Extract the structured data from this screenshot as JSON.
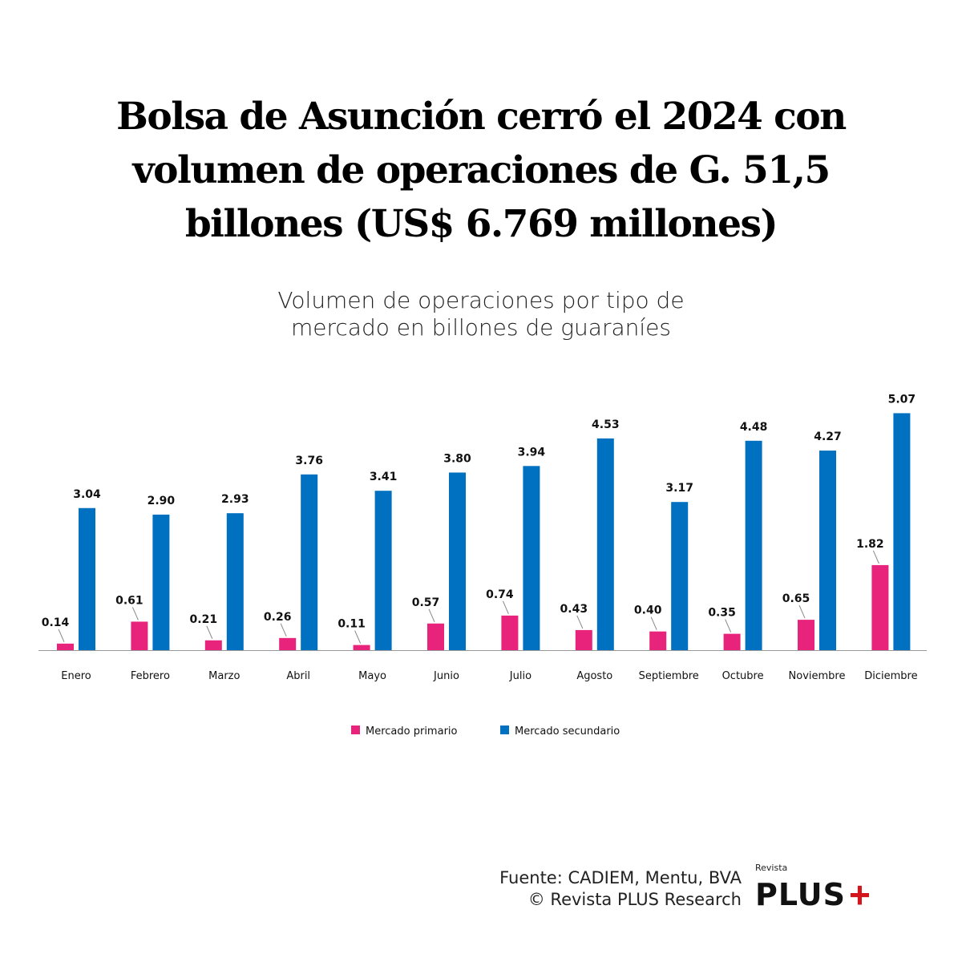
{
  "title_lines": [
    "Bolsa de Asunción cerró el 2024 con",
    "volumen de operaciones de G. 51,5",
    "billones (US$ 6.769 millones)"
  ],
  "subtitle_lines": [
    "Volumen de operaciones por tipo de",
    "mercado en billones de guaraníes"
  ],
  "chart_data": {
    "type": "bar",
    "title": "Volumen de operaciones por tipo de mercado en billones de guaraníes",
    "xlabel": "",
    "ylabel": "",
    "ylim": [
      0,
      5.2
    ],
    "grid": false,
    "legend_position": "bottom",
    "categories": [
      "Enero",
      "Febrero",
      "Marzo",
      "Abril",
      "Mayo",
      "Junio",
      "Julio",
      "Agosto",
      "Septiembre",
      "Octubre",
      "Noviembre",
      "Diciembre"
    ],
    "series": [
      {
        "name": "Mercado primario",
        "color": "#e8237c",
        "values": [
          0.14,
          0.61,
          0.21,
          0.26,
          0.11,
          0.57,
          0.74,
          0.43,
          0.4,
          0.35,
          0.65,
          1.82
        ],
        "labels": [
          "0.14",
          "0.61",
          "0.21",
          "0.26",
          "0.11",
          "0.57",
          "0.74",
          "0.43",
          "0.40",
          "0.35",
          "0.65",
          "1.82"
        ]
      },
      {
        "name": "Mercado secundario",
        "color": "#0070c0",
        "values": [
          3.04,
          2.9,
          2.93,
          3.76,
          3.41,
          3.8,
          3.94,
          4.53,
          3.17,
          4.48,
          4.27,
          5.07
        ],
        "labels": [
          "3.04",
          "2.90",
          "2.93",
          "3.76",
          "3.41",
          "3.80",
          "3.94",
          "4.53",
          "3.17",
          "4.48",
          "4.27",
          "5.07"
        ]
      }
    ]
  },
  "source_lines": [
    "Fuente: CADIEM, Mentu, BVA",
    "© Revista PLUS Research"
  ],
  "logo": {
    "small": "Revista",
    "big": "PLUS",
    "cross": "+"
  }
}
